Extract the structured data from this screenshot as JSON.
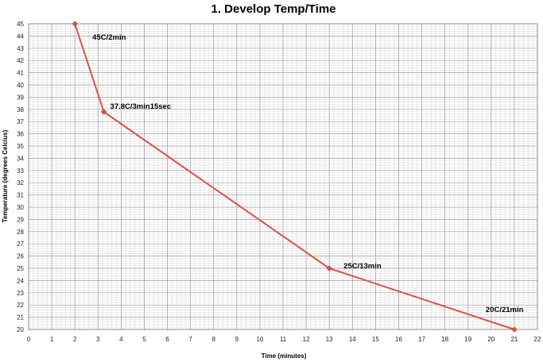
{
  "chart_data": {
    "type": "line",
    "title": "1. Develop Temp/Time",
    "xlabel": "Time (minutes)",
    "ylabel": "Temperature (degrees Celcius)",
    "xlim": [
      0,
      22
    ],
    "ylim": [
      20,
      45
    ],
    "x_ticks": [
      0,
      1,
      2,
      3,
      4,
      5,
      6,
      7,
      8,
      9,
      10,
      11,
      12,
      13,
      14,
      15,
      16,
      17,
      18,
      19,
      20,
      21,
      22
    ],
    "y_ticks": [
      20,
      21,
      22,
      23,
      24,
      25,
      26,
      27,
      28,
      29,
      30,
      31,
      32,
      33,
      34,
      35,
      36,
      37,
      38,
      39,
      40,
      41,
      42,
      43,
      44,
      45
    ],
    "grid": true,
    "legend": "none",
    "series": [
      {
        "color": "#d9534f",
        "points": [
          {
            "x": 2,
            "y": 45,
            "label": "45C/2min"
          },
          {
            "x": 3.25,
            "y": 37.8,
            "label": "37.8C/3min15sec"
          },
          {
            "x": 13,
            "y": 25,
            "label": "25C/13min"
          },
          {
            "x": 21,
            "y": 20,
            "label": "20C/21min"
          }
        ]
      }
    ]
  }
}
